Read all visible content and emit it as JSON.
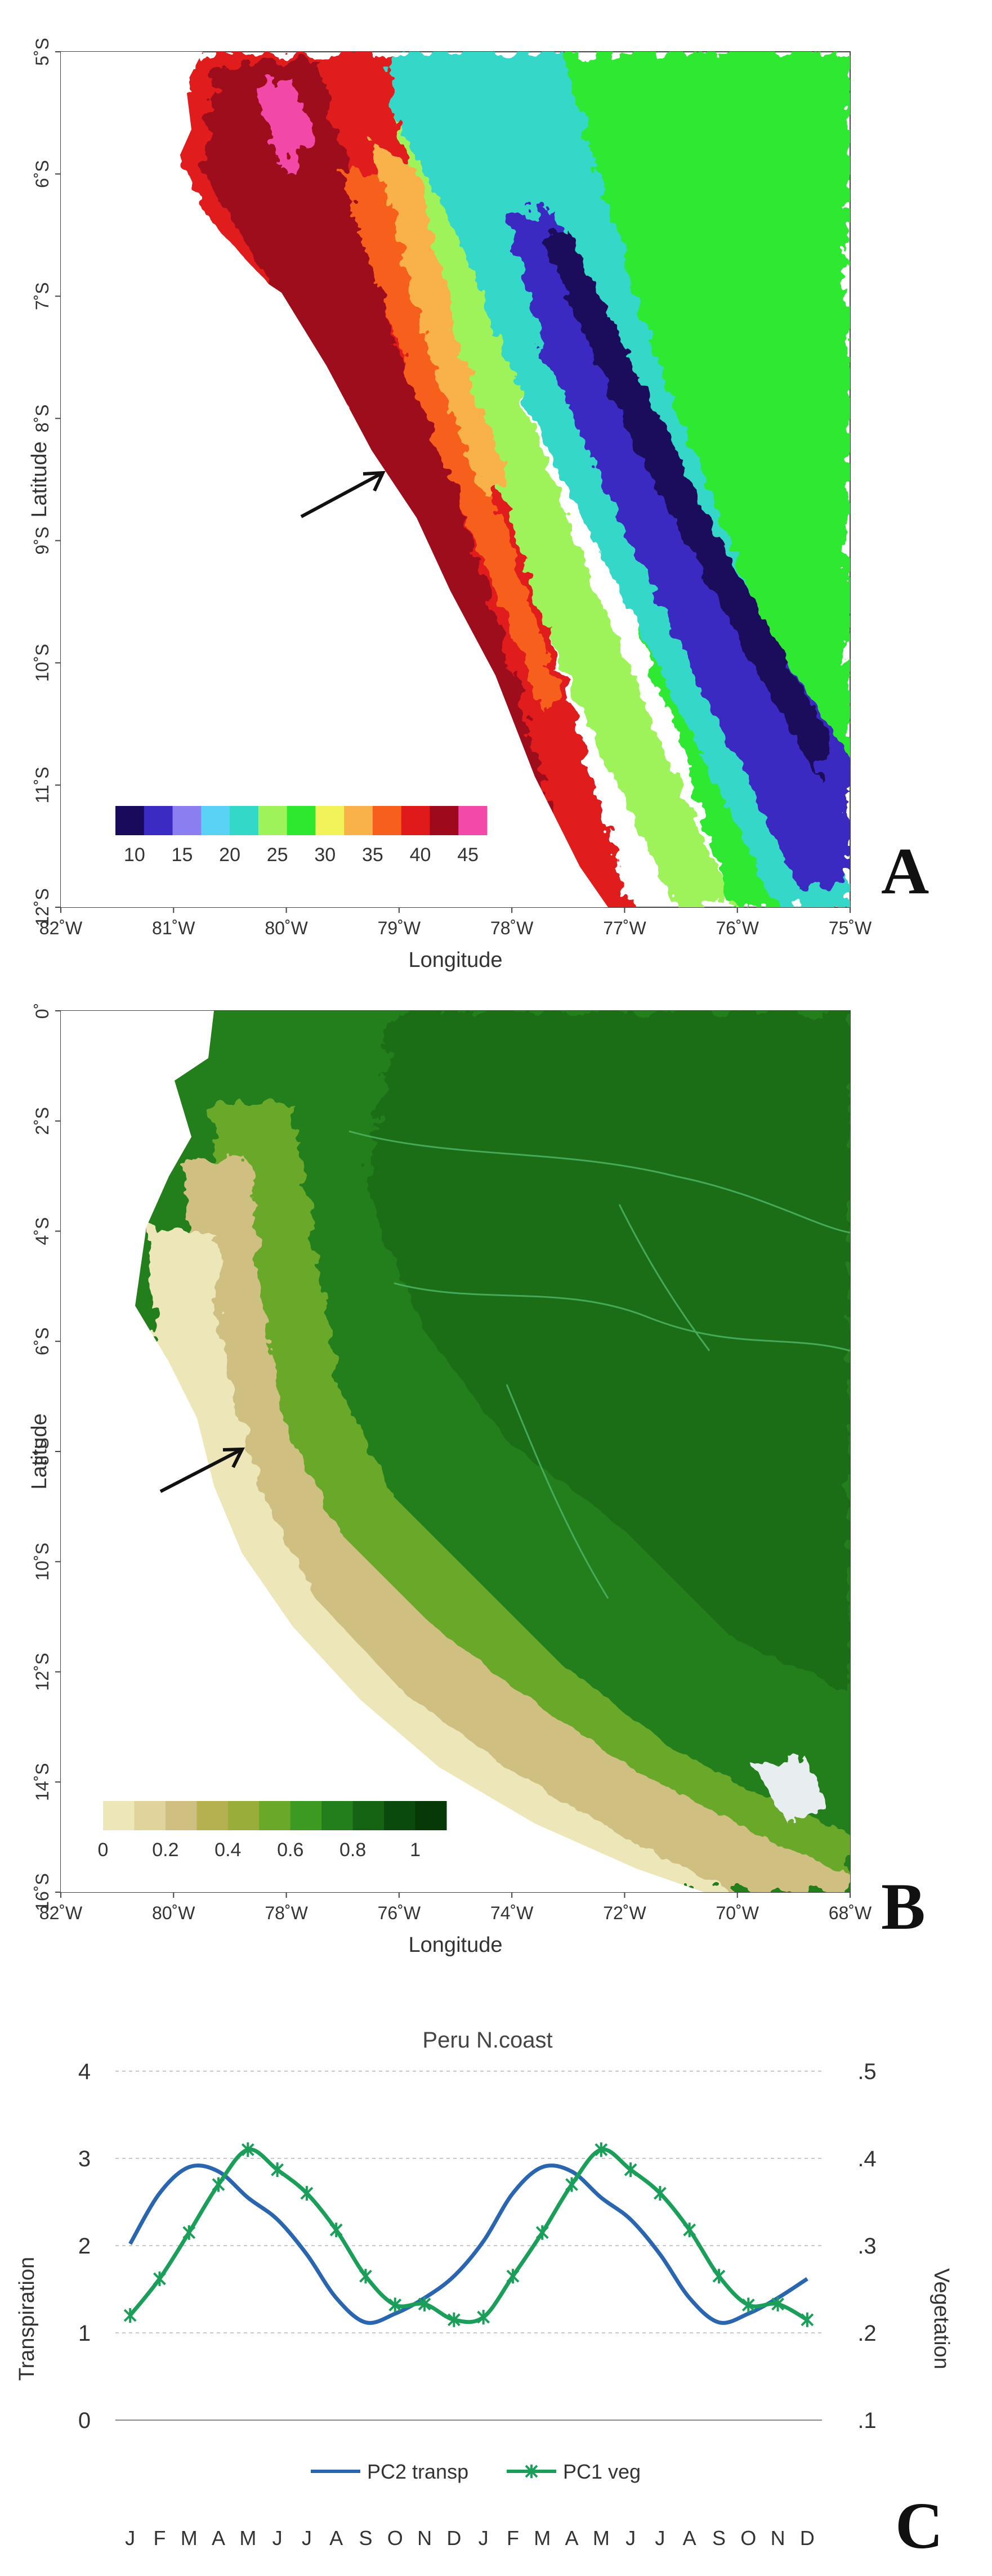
{
  "panels": {
    "a": {
      "letter": "A"
    },
    "b": {
      "letter": "B"
    },
    "c": {
      "letter": "C"
    }
  },
  "chart_data": [
    {
      "type": "heatmap",
      "panel": "A",
      "xlabel": "Longitude",
      "ylabel": "Latitude",
      "x_ticks": [
        "82˚W",
        "81˚W",
        "80˚W",
        "79˚W",
        "78˚W",
        "77˚W",
        "76˚W",
        "75˚W"
      ],
      "y_ticks": [
        "5˚S",
        "6˚S",
        "7˚S",
        "8˚S",
        "9˚S",
        "10˚S",
        "11˚S",
        "12˚S"
      ],
      "xlim": [
        -82,
        -75
      ],
      "ylim": [
        -12,
        -4.2
      ],
      "colorbar": {
        "labels": [
          "10",
          "15",
          "20",
          "25",
          "30",
          "35",
          "40",
          "45"
        ],
        "range": [
          8,
          47
        ],
        "colors": [
          "#1a0a5c",
          "#3b2bc2",
          "#8a7ef0",
          "#5ad2f5",
          "#34d8c8",
          "#9ef25a",
          "#2ee830",
          "#f2f25a",
          "#f9b24a",
          "#f6601c",
          "#e01a1a",
          "#9e0a1c",
          "#f24aa8"
        ]
      },
      "annotation": "arrow pointing to northern Peru coast"
    },
    {
      "type": "heatmap",
      "panel": "B",
      "xlabel": "Longitude",
      "ylabel": "Latitude",
      "x_ticks": [
        "82˚W",
        "80˚W",
        "78˚W",
        "76˚W",
        "74˚W",
        "72˚W",
        "70˚W",
        "68˚W"
      ],
      "y_ticks": [
        "0˚",
        "2˚S",
        "4˚S",
        "6˚S",
        "8˚S",
        "10˚S",
        "12˚S",
        "14˚S",
        "16˚S"
      ],
      "xlim": [
        -82,
        -68
      ],
      "ylim": [
        -16.8,
        0
      ],
      "colorbar": {
        "labels": [
          "0",
          "0.2",
          "0.4",
          "0.6",
          "0.8",
          "1"
        ],
        "range": [
          0,
          1.1
        ],
        "colors": [
          "#ede6b8",
          "#e0d49c",
          "#cfc082",
          "#b5b050",
          "#98ad3a",
          "#6aa82a",
          "#3c9a22",
          "#237e1c",
          "#156414",
          "#0a4a0c",
          "#063808"
        ]
      },
      "annotation": "arrow pointing to northern Peru coast"
    },
    {
      "type": "line",
      "panel": "C",
      "title": "Peru N.coast",
      "categories": [
        "J",
        "F",
        "M",
        "A",
        "M",
        "J",
        "J",
        "A",
        "S",
        "O",
        "N",
        "D",
        "J",
        "F",
        "M",
        "A",
        "M",
        "J",
        "J",
        "A",
        "S",
        "O",
        "N",
        "D"
      ],
      "ylabel": "Transpiration",
      "y2label": "Vegetation",
      "ylim": [
        0,
        4
      ],
      "y2lim": [
        0.1,
        0.5
      ],
      "y_ticks": [
        "0",
        "1",
        "2",
        "3",
        "4"
      ],
      "y2_ticks": [
        ".1",
        ".2",
        ".3",
        ".4",
        ".5"
      ],
      "grid": true,
      "legend": "bottom-center",
      "series": [
        {
          "name": "PC2 transp",
          "axis": "left",
          "color": "#2a66b0",
          "marker": "none",
          "values": [
            2.02,
            2.6,
            2.9,
            2.85,
            2.55,
            2.3,
            1.9,
            1.4,
            1.12,
            1.22,
            1.4,
            1.65,
            2.05,
            2.6,
            2.9,
            2.85,
            2.55,
            2.3,
            1.9,
            1.4,
            1.12,
            1.22,
            1.4,
            1.62
          ]
        },
        {
          "name": "PC1 veg",
          "axis": "right",
          "color": "#1a9e5a",
          "marker": "asterisk",
          "values": [
            0.22,
            0.262,
            0.315,
            0.37,
            0.41,
            0.387,
            0.36,
            0.318,
            0.265,
            0.232,
            0.233,
            0.215,
            0.218,
            0.265,
            0.315,
            0.37,
            0.41,
            0.387,
            0.36,
            0.318,
            0.265,
            0.232,
            0.233,
            0.215
          ]
        }
      ]
    }
  ]
}
